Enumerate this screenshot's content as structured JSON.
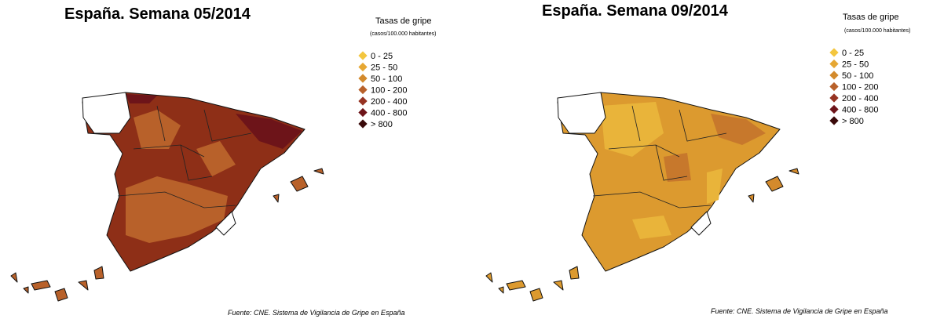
{
  "maps": [
    {
      "title": "España. Semana 05/2014",
      "legend_title": "Tasas de gripe",
      "legend_subtitle": "(casos/100.000 habitantes)",
      "legend_items": [
        {
          "label": "0 - 25",
          "color": "#f3c63f"
        },
        {
          "label": "25 - 50",
          "color": "#e6a733"
        },
        {
          "label": "50 - 100",
          "color": "#d38a2c"
        },
        {
          "label": "100 - 200",
          "color": "#b8612a"
        },
        {
          "label": "200 - 400",
          "color": "#963322"
        },
        {
          "label": "400 - 800",
          "color": "#6d1419"
        },
        {
          "label": "> 800",
          "color": "#3a0a0a"
        }
      ],
      "source": "Fuente: CNE. Sistema de Vigilancia de Gripe en España"
    },
    {
      "title": "España. Semana 09/2014",
      "legend_title": "Tasas de gripe",
      "legend_subtitle": "(casos/100.000 habitantes)",
      "legend_items": [
        {
          "label": "0 - 25",
          "color": "#f3c63f"
        },
        {
          "label": "25 - 50",
          "color": "#e6a733"
        },
        {
          "label": "50 - 100",
          "color": "#d38a2c"
        },
        {
          "label": "100 - 200",
          "color": "#b8612a"
        },
        {
          "label": "200 - 400",
          "color": "#963322"
        },
        {
          "label": "400 - 800",
          "color": "#6d1419"
        },
        {
          "label": "> 800",
          "color": "#3a0a0a"
        }
      ],
      "source": "Fuente: CNE. Sistema de Vigilancia de Gripe en España"
    }
  ]
}
